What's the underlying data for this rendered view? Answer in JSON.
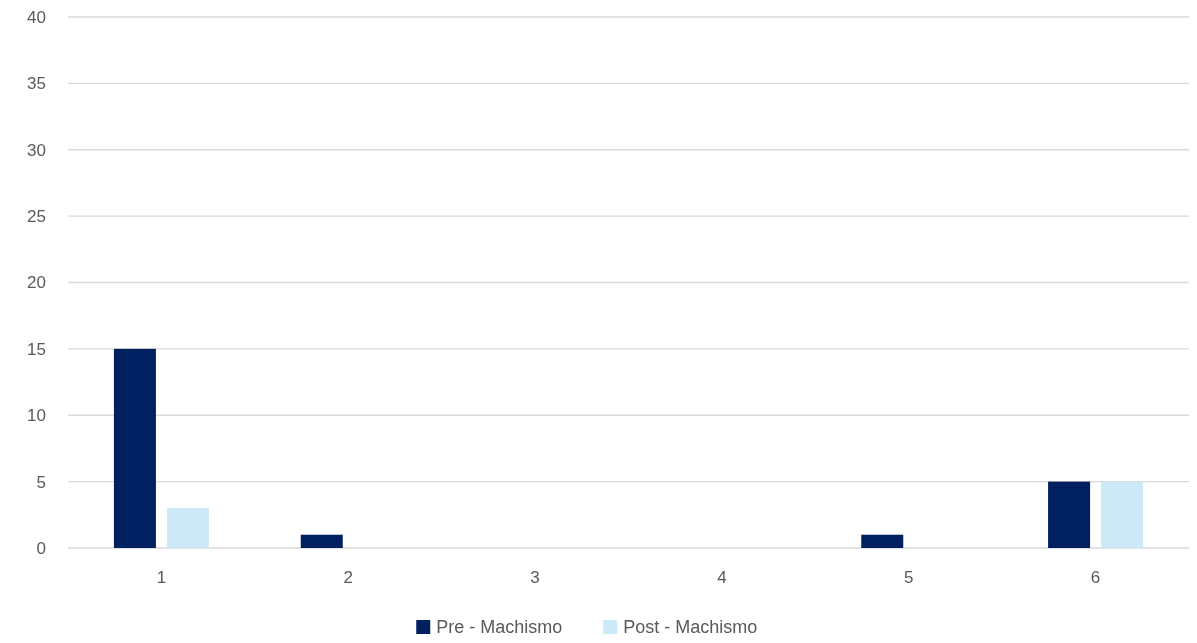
{
  "chart_data": {
    "type": "bar",
    "categories": [
      "1",
      "2",
      "3",
      "4",
      "5",
      "6"
    ],
    "series": [
      {
        "name": "Pre - Machismo",
        "color": "#002060",
        "values": [
          15,
          1,
          0,
          0,
          1,
          5
        ]
      },
      {
        "name": "Post - Machismo",
        "color": "#cce9f8",
        "values": [
          3,
          0,
          0,
          0,
          0,
          5
        ]
      }
    ],
    "ylim": [
      0,
      40
    ],
    "yticks": [
      0,
      5,
      10,
      15,
      20,
      25,
      30,
      35,
      40
    ],
    "grid": "y",
    "legend": "bottom"
  }
}
